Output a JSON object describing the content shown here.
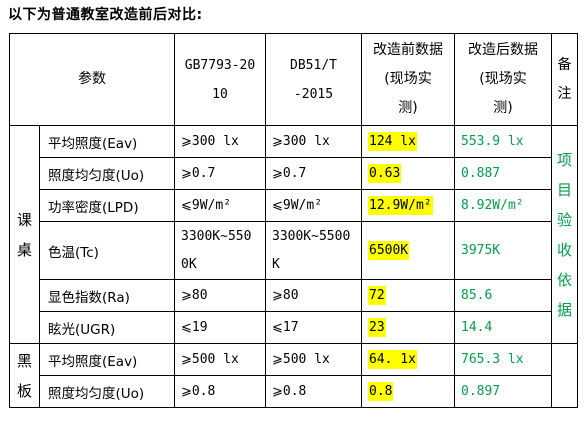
{
  "title": "以下为普通教室改造前后对比:",
  "header": {
    "param": "参数",
    "std1_line1": "GB7793-20",
    "std1_line2": "10",
    "std2_line1": "DB51/T",
    "std2_line2": "-2015",
    "before_line1": "改造前数据",
    "before_line2": "(现场实",
    "before_line3": "测)",
    "after_line1": "改造后数据",
    "after_line2": "(现场实",
    "after_line3": "测)",
    "note_line1": "备",
    "note_line2": "注"
  },
  "groups": {
    "desk_1": "课",
    "desk_2": "桌",
    "board_1": "黑",
    "board_2": "板"
  },
  "note_text": [
    "项",
    "目",
    "验",
    "收",
    "依",
    "据"
  ],
  "rows": [
    {
      "name": "平均照度(Eav)",
      "std1": "⩾300 lx",
      "std2": "⩾300 lx",
      "before": "124 lx",
      "after": "553.9 lx"
    },
    {
      "name": "照度均匀度(Uo)",
      "std1": "⩾0.7",
      "std2": "⩾0.7",
      "before": "0.63",
      "after": "0.887"
    },
    {
      "name": "功率密度(LPD)",
      "std1": "⩽9W/m²",
      "std2": "⩽9W/m²",
      "before": "12.9W/m²",
      "after": "8.92W/m²"
    },
    {
      "name": "色温(Tc)",
      "std1_l1": "3300K~550",
      "std1_l2": "0K",
      "std2_l1": "3300K~5500",
      "std2_l2": "K",
      "before": "6500K",
      "after": "3975K"
    },
    {
      "name": "显色指数(Ra)",
      "std1": "⩾80",
      "std2": "⩾80",
      "before": "72",
      "after": "85.6"
    },
    {
      "name": "眩光(UGR)",
      "std1": "⩽19",
      "std2": "⩽17",
      "before": "23",
      "after": "14.4"
    },
    {
      "name": "平均照度(Eav)",
      "std1": "⩾500 lx",
      "std2": "⩾500 lx",
      "before": "64. 1x",
      "after": "765.3 lx"
    },
    {
      "name": "照度均匀度(Uo)",
      "std1": "⩾0.8",
      "std2": "⩾0.8",
      "before": "0.8",
      "after": "0.897"
    }
  ],
  "colors": {
    "highlight": "#ffff00",
    "after_text": "#00a04a"
  }
}
